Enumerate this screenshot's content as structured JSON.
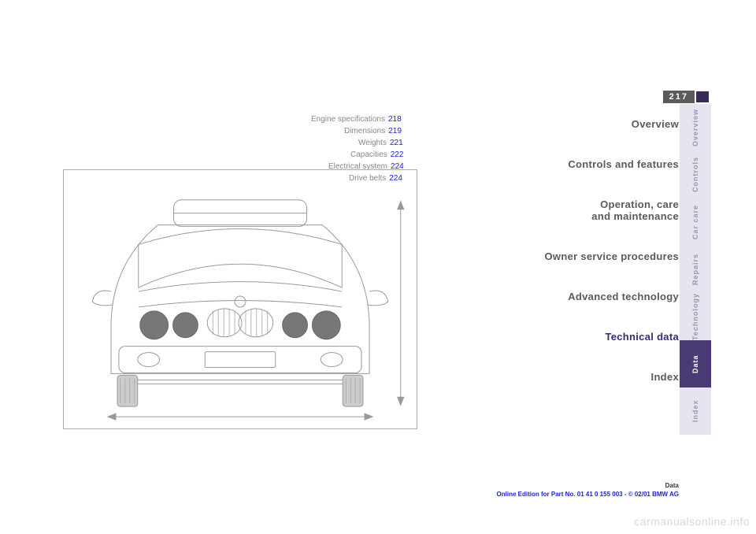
{
  "page_number": "217",
  "toc": [
    {
      "label": "Engine specifications",
      "num": "218",
      "indent": 0
    },
    {
      "label": "Dimensions",
      "num": "219",
      "indent": 42
    },
    {
      "label": "Weights",
      "num": "221",
      "indent": 60
    },
    {
      "label": "Capacities",
      "num": "222",
      "indent": 50
    },
    {
      "label": "Electrical system",
      "num": "224",
      "indent": 22
    },
    {
      "label": "Drive belts",
      "num": "224",
      "indent": 48
    }
  ],
  "sections": [
    {
      "label": "Overview",
      "twoLine": false,
      "active": false
    },
    {
      "label": "Controls and features",
      "twoLine": false,
      "active": false
    },
    {
      "label": "Operation, care",
      "label2": "and maintenance",
      "twoLine": true,
      "active": false
    },
    {
      "label": "Owner service procedures",
      "twoLine": false,
      "active": false
    },
    {
      "label": "Advanced technology",
      "twoLine": false,
      "active": false
    },
    {
      "label": "Technical data",
      "twoLine": false,
      "active": true
    },
    {
      "label": "Index",
      "twoLine": false,
      "active": false
    }
  ],
  "tabs": [
    {
      "label": "Overview",
      "style": "dim"
    },
    {
      "label": "Controls",
      "style": "dim"
    },
    {
      "label": "Car care",
      "style": "dim"
    },
    {
      "label": "Repairs",
      "style": "dim"
    },
    {
      "label": "Technology",
      "style": "dim"
    },
    {
      "label": "Data",
      "style": "active"
    },
    {
      "label": "Index",
      "style": "dim"
    }
  ],
  "footer": {
    "line1": "Data",
    "line2": "Online Edition for Part No. 01 41 0 155 003 - © 02/01 BMW AG"
  },
  "watermark": "carmanualsonline.info",
  "colors": {
    "link_blue": "#2020e0",
    "section_gray": "#5a5a5a",
    "section_active": "#3a2a7a",
    "tab_dim_bg": "#e8e4ef",
    "tab_dim_fg": "#9a94b0",
    "tab_active_bg": "#4a3a75"
  }
}
